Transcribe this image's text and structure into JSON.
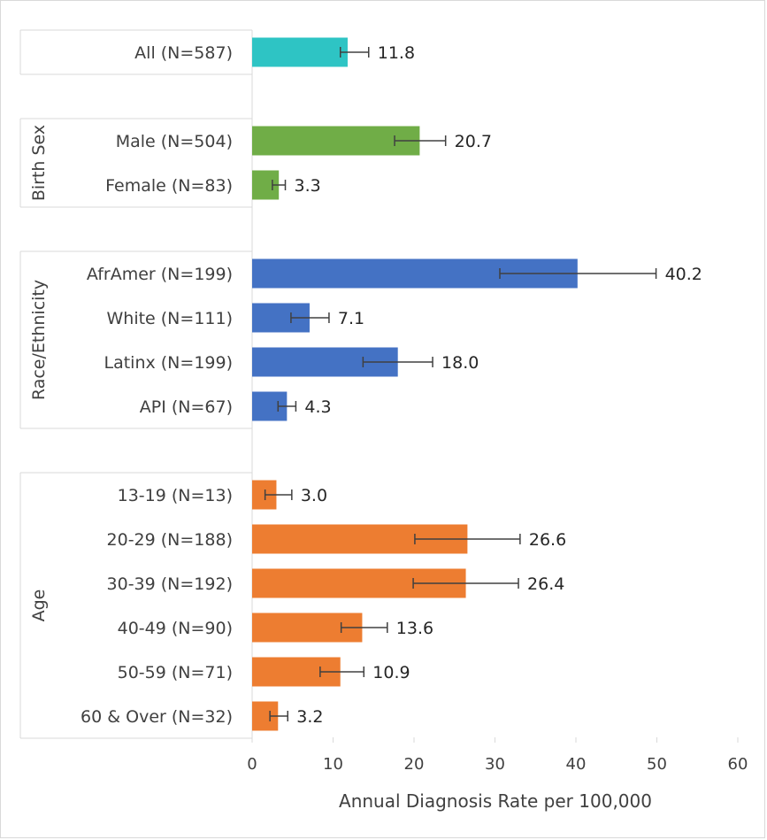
{
  "chart_data": {
    "type": "bar",
    "orientation": "horizontal",
    "title": "",
    "xlabel": "Annual Diagnosis Rate per 100,000",
    "ylabel": "",
    "xlim": [
      0,
      60
    ],
    "xticks": [
      0,
      10,
      20,
      30,
      40,
      50,
      60
    ],
    "grid": false,
    "error_bars": true,
    "groups": [
      {
        "name": "",
        "color": "#2EC4C4",
        "items": [
          {
            "label": "All (N=587)",
            "value": 11.8,
            "value_label": "11.8",
            "err_low": 10.9,
            "err_high": 14.4
          }
        ]
      },
      {
        "name": "Birth Sex",
        "color": "#70AD47",
        "items": [
          {
            "label": "Male (N=504)",
            "value": 20.7,
            "value_label": "20.7",
            "err_low": 17.6,
            "err_high": 23.9
          },
          {
            "label": "Female (N=83)",
            "value": 3.3,
            "value_label": "3.3",
            "err_low": 2.5,
            "err_high": 4.1
          }
        ]
      },
      {
        "name": "Race/Ethnicity",
        "color": "#4472C4",
        "items": [
          {
            "label": "AfrAmer (N=199)",
            "value": 40.2,
            "value_label": "40.2",
            "err_low": 30.6,
            "err_high": 49.9
          },
          {
            "label": "White (N=111)",
            "value": 7.1,
            "value_label": "7.1",
            "err_low": 4.8,
            "err_high": 9.5
          },
          {
            "label": "Latinx (N=199)",
            "value": 18.0,
            "value_label": "18.0",
            "err_low": 13.7,
            "err_high": 22.3
          },
          {
            "label": "API (N=67)",
            "value": 4.3,
            "value_label": "4.3",
            "err_low": 3.2,
            "err_high": 5.4
          }
        ]
      },
      {
        "name": "Age",
        "color": "#ED7D31",
        "items": [
          {
            "label": "13-19 (N=13)",
            "value": 3.0,
            "value_label": "3.0",
            "err_low": 1.6,
            "err_high": 4.9
          },
          {
            "label": "20-29 (N=188)",
            "value": 26.6,
            "value_label": "26.6",
            "err_low": 20.1,
            "err_high": 33.1
          },
          {
            "label": "30-39 (N=192)",
            "value": 26.4,
            "value_label": "26.4",
            "err_low": 19.9,
            "err_high": 32.9
          },
          {
            "label": "40-49 (N=90)",
            "value": 13.6,
            "value_label": "13.6",
            "err_low": 11.0,
            "err_high": 16.7
          },
          {
            "label": "50-59 (N=71)",
            "value": 10.9,
            "value_label": "10.9",
            "err_low": 8.4,
            "err_high": 13.8
          },
          {
            "label": "60 & Over (N=32)",
            "value": 3.2,
            "value_label": "3.2",
            "err_low": 2.2,
            "err_high": 4.4
          }
        ]
      }
    ]
  }
}
